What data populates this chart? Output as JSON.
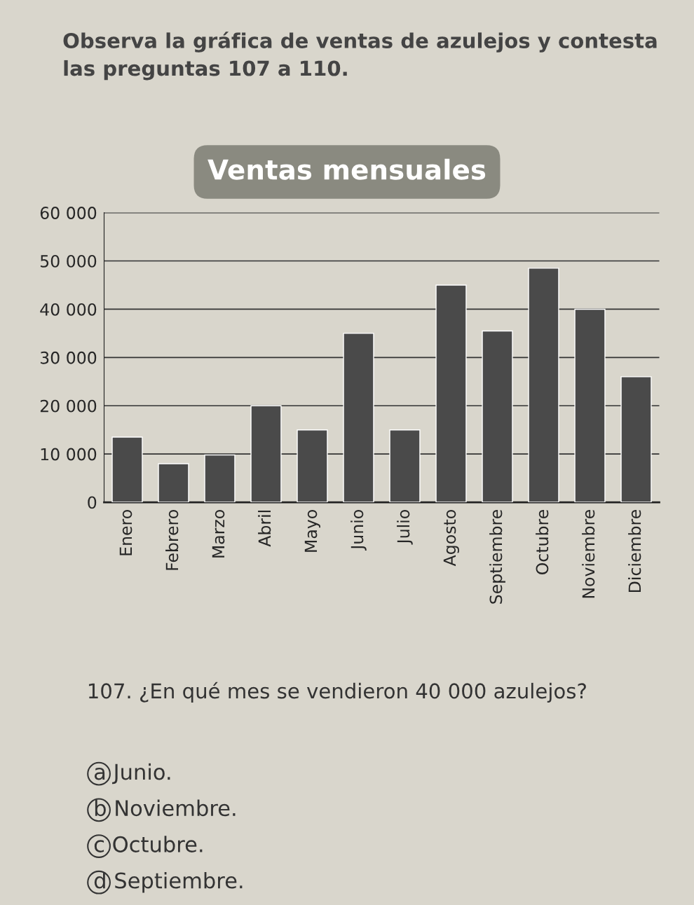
{
  "chart_data": {
    "type": "bar",
    "title": "Ventas mensuales",
    "subtitle": "Observa la gráfica de ventas de azulejos y contesta las preguntas 107 a 110.",
    "categories": [
      "Enero",
      "Febrero",
      "Marzo",
      "Abril",
      "Mayo",
      "Junio",
      "Julio",
      "Agosto",
      "Septiembre",
      "Octubre",
      "Noviembre",
      "Diciembre"
    ],
    "values": [
      13500,
      8000,
      9800,
      20000,
      15000,
      35000,
      15000,
      45000,
      35500,
      48500,
      40000,
      26000
    ],
    "color": "#4a4a4a",
    "ylim": [
      0,
      60000
    ],
    "yticks": [
      0,
      {
        "value": 10000,
        "label": "10 000"
      },
      {
        "value": 20000,
        "label": "20 000"
      },
      {
        "value": 30000,
        "label": "30 000"
      },
      {
        "value": 40000,
        "label": "40 000"
      },
      {
        "value": 50000,
        "label": "50 000"
      },
      {
        "value": 60000,
        "label": "60 000"
      }
    ],
    "grid": "y",
    "annotations": [
      "107. ¿En qué mes se vendieron 40 000 azulejos?",
      "a Junio.",
      "b Noviembre.",
      "c Octubre.",
      "d Septiembre."
    ]
  }
}
